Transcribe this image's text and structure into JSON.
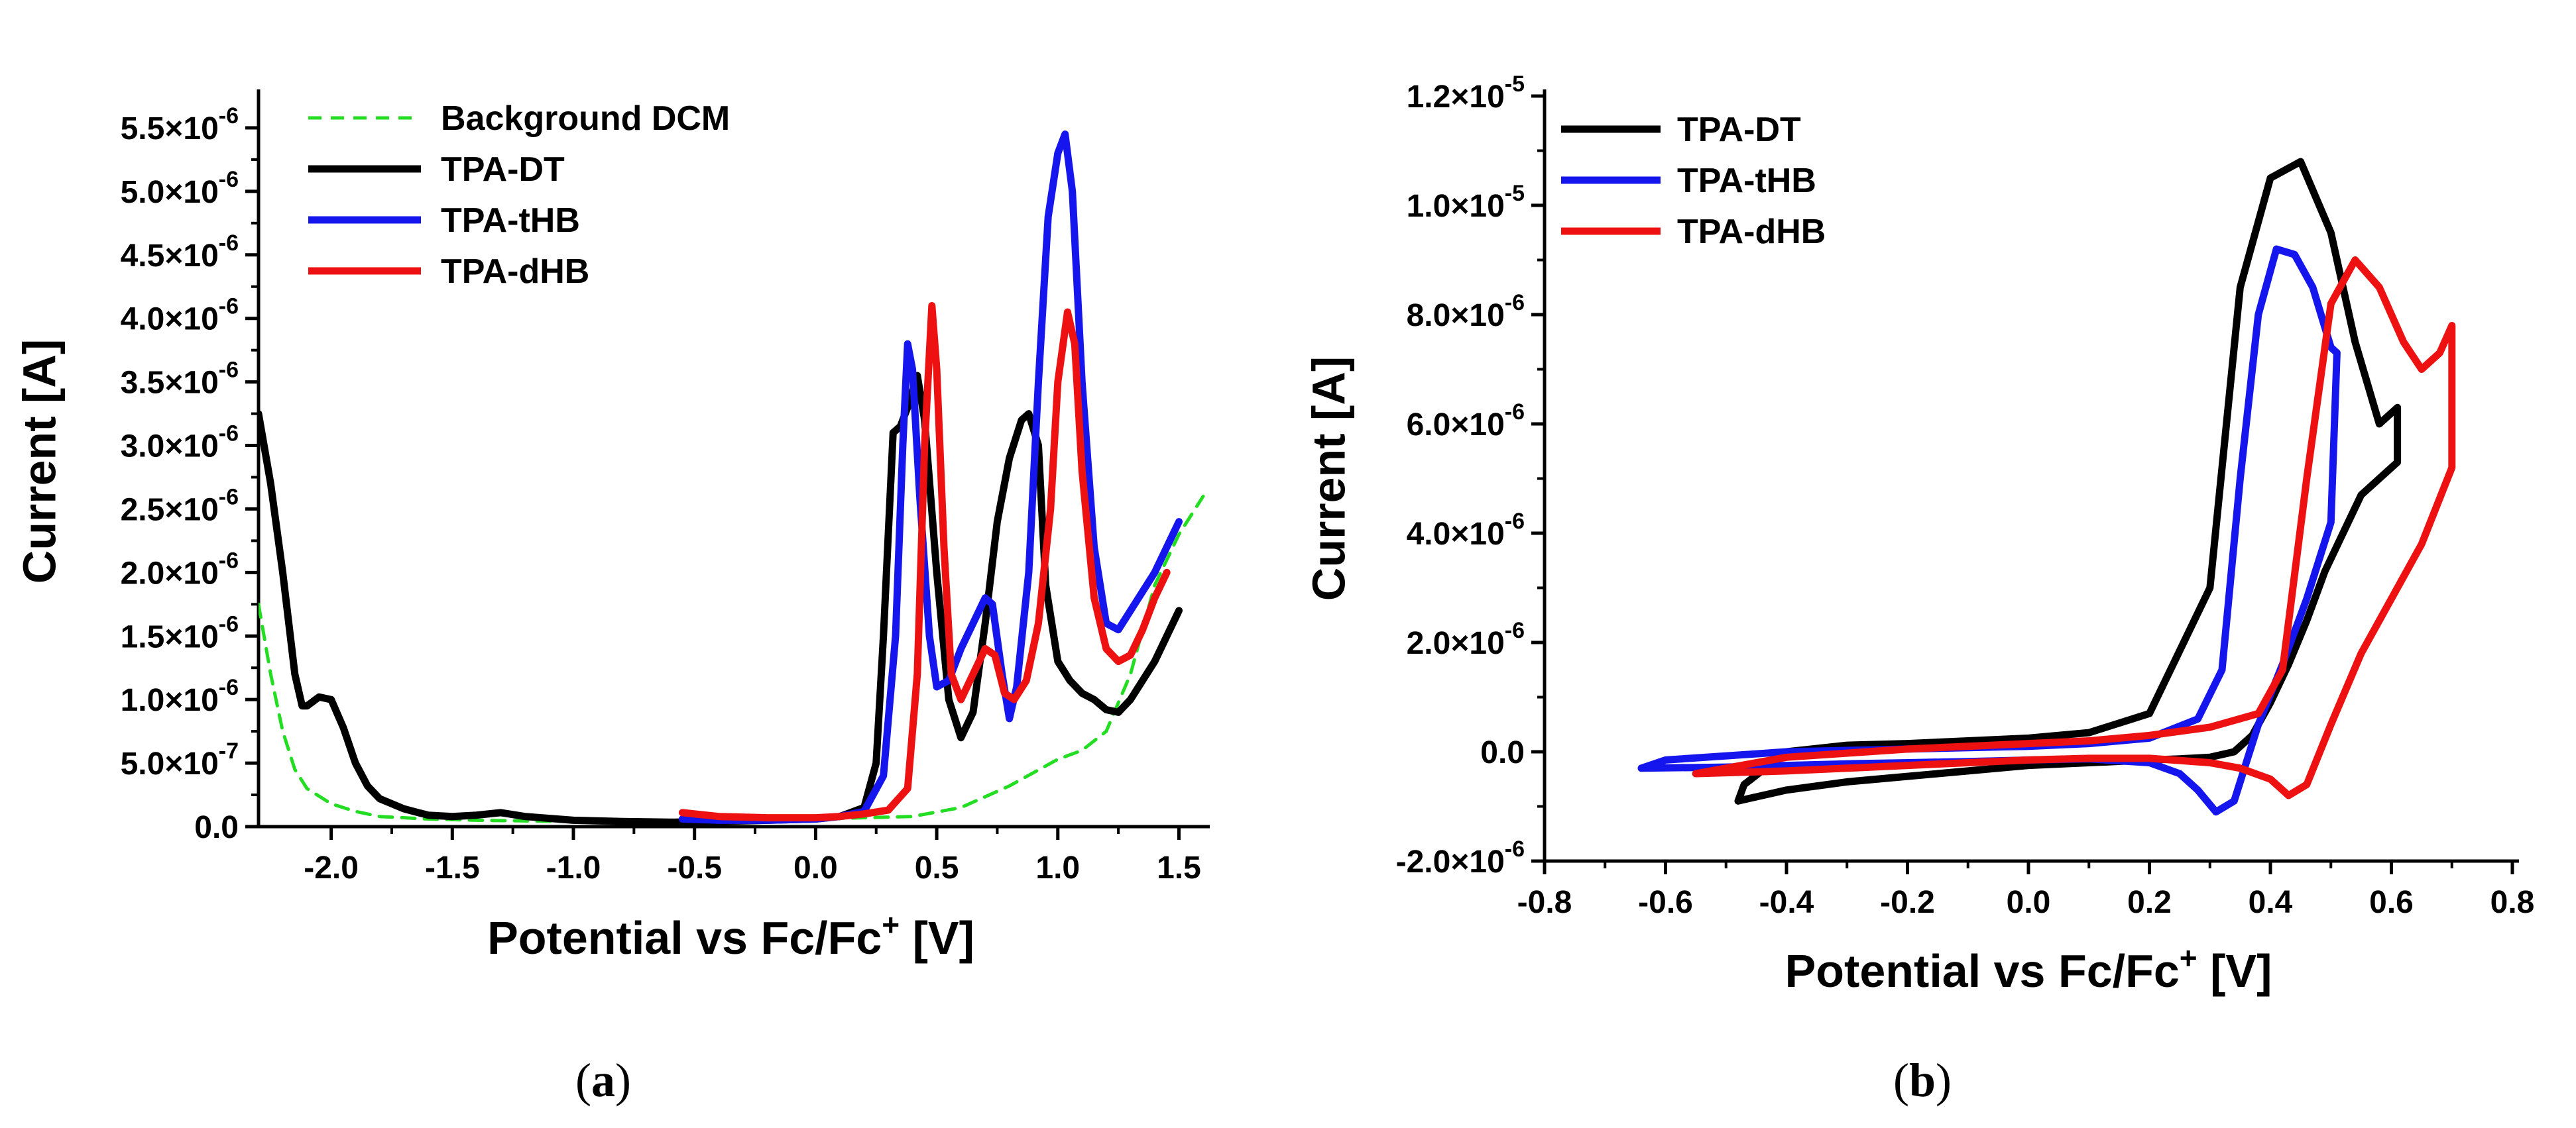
{
  "chart_data": [
    {
      "panel": "a",
      "panel_label": "a",
      "type": "line",
      "title": "",
      "xlabel": "Potential vs Fc/Fc",
      "xlabel_sup": "+",
      "xlabel_unit": " [V]",
      "ylabel": "Current [A]",
      "xlim": [
        -2.3,
        1.6
      ],
      "ylim": [
        0,
        5.75e-06
      ],
      "xticks": [
        -2.0,
        -1.5,
        -1.0,
        -0.5,
        0.0,
        0.5,
        1.0,
        1.5
      ],
      "xtick_labels": [
        "-2.0",
        "-1.5",
        "-1.0",
        "-0.5",
        "0.0",
        "0.5",
        "1.0",
        "1.5"
      ],
      "yticks": [
        0,
        5e-07,
        1e-06,
        1.5e-06,
        2e-06,
        2.5e-06,
        3e-06,
        3.5e-06,
        4e-06,
        4.5e-06,
        5e-06,
        5.5e-06
      ],
      "ytick_labels": [
        {
          "mant": "0.0",
          "exp": ""
        },
        {
          "mant": "5.0×10",
          "exp": "-7"
        },
        {
          "mant": "1.0×10",
          "exp": "-6"
        },
        {
          "mant": "1.5×10",
          "exp": "-6"
        },
        {
          "mant": "2.0×10",
          "exp": "-6"
        },
        {
          "mant": "2.5×10",
          "exp": "-6"
        },
        {
          "mant": "3.0×10",
          "exp": "-6"
        },
        {
          "mant": "3.5×10",
          "exp": "-6"
        },
        {
          "mant": "4.0×10",
          "exp": "-6"
        },
        {
          "mant": "4.5×10",
          "exp": "-6"
        },
        {
          "mant": "5.0×10",
          "exp": "-6"
        },
        {
          "mant": "5.5×10",
          "exp": "-6"
        }
      ],
      "legend_position": "top-left",
      "series": [
        {
          "name": "Background DCM",
          "color": "#22dd22",
          "dashed": true,
          "x": [
            -2.3,
            -2.25,
            -2.2,
            -2.15,
            -2.1,
            -2.0,
            -1.9,
            -1.8,
            -1.6,
            -1.4,
            -1.2,
            -1.0,
            -0.8,
            -0.6,
            -0.4,
            -0.2,
            0.0,
            0.2,
            0.4,
            0.6,
            0.8,
            1.0,
            1.1,
            1.2,
            1.3,
            1.4,
            1.5,
            1.6
          ],
          "y": [
            1.75e-06,
            1.2e-06,
            7.5e-07,
            4.5e-07,
            3e-07,
            1.8e-07,
            1.2e-07,
            8e-08,
            6e-08,
            5e-08,
            4.5e-08,
            4e-08,
            4e-08,
            4e-08,
            4.5e-08,
            5e-08,
            6e-08,
            7e-08,
            8e-08,
            1.5e-07,
            3.2e-07,
            5.3e-07,
            6e-07,
            7.5e-07,
            1.2e-06,
            1.9e-06,
            2.3e-06,
            2.6e-06
          ]
        },
        {
          "name": "TPA-DT",
          "color": "#000000",
          "dashed": false,
          "x": [
            -2.3,
            -2.25,
            -2.2,
            -2.15,
            -2.12,
            -2.1,
            -2.05,
            -2.0,
            -1.95,
            -1.9,
            -1.85,
            -1.8,
            -1.7,
            -1.6,
            -1.5,
            -1.4,
            -1.3,
            -1.2,
            -1.0,
            -0.8,
            -0.6,
            -0.4,
            -0.2,
            0.0,
            0.1,
            0.2,
            0.25,
            0.28,
            0.32,
            0.35,
            0.38,
            0.42,
            0.45,
            0.5,
            0.55,
            0.6,
            0.65,
            0.7,
            0.75,
            0.8,
            0.85,
            0.88,
            0.92,
            0.95,
            1.0,
            1.05,
            1.1,
            1.15,
            1.2,
            1.25,
            1.3,
            1.4,
            1.5
          ],
          "y": [
            3.25e-06,
            2.7e-06,
            2e-06,
            1.2e-06,
            9.5e-07,
            9.5e-07,
            1.02e-06,
            1e-06,
            7.8e-07,
            5e-07,
            3.2e-07,
            2.2e-07,
            1.4e-07,
            9e-08,
            8e-08,
            9e-08,
            1.1e-07,
            8e-08,
            5e-08,
            4e-08,
            3.5e-08,
            4e-08,
            5e-08,
            6e-08,
            8e-08,
            1.5e-07,
            5e-07,
            1.5e-06,
            3.1e-06,
            3.15e-06,
            3.3e-06,
            3.55e-06,
            3.2e-06,
            2e-06,
            1e-06,
            7e-07,
            9e-07,
            1.6e-06,
            2.4e-06,
            2.9e-06,
            3.2e-06,
            3.25e-06,
            3e-06,
            1.9e-06,
            1.3e-06,
            1.15e-06,
            1.05e-06,
            1e-06,
            9.2e-07,
            9e-07,
            1e-06,
            1.3e-06,
            1.7e-06
          ]
        },
        {
          "name": "TPA-tHB",
          "color": "#1515ee",
          "dashed": false,
          "x": [
            -0.55,
            -0.4,
            -0.2,
            0.0,
            0.1,
            0.2,
            0.28,
            0.33,
            0.36,
            0.38,
            0.4,
            0.43,
            0.47,
            0.5,
            0.55,
            0.6,
            0.65,
            0.7,
            0.73,
            0.77,
            0.8,
            0.83,
            0.88,
            0.92,
            0.96,
            1.0,
            1.03,
            1.06,
            1.1,
            1.15,
            1.2,
            1.25,
            1.3,
            1.4,
            1.5
          ],
          "y": [
            6e-08,
            5e-08,
            5e-08,
            6e-08,
            8e-08,
            1.2e-07,
            4e-07,
            1.5e-06,
            3e-06,
            3.8e-06,
            3.6e-06,
            2.6e-06,
            1.5e-06,
            1.1e-06,
            1.15e-06,
            1.4e-06,
            1.6e-06,
            1.8e-06,
            1.75e-06,
            1.2e-06,
            8.5e-07,
            1.1e-06,
            2e-06,
            3.5e-06,
            4.8e-06,
            5.3e-06,
            5.45e-06,
            5e-06,
            3.5e-06,
            2.2e-06,
            1.6e-06,
            1.55e-06,
            1.7e-06,
            2e-06,
            2.4e-06
          ]
        },
        {
          "name": "TPA-dHB",
          "color": "#ee1111",
          "dashed": false,
          "x": [
            -0.55,
            -0.4,
            -0.2,
            0.0,
            0.1,
            0.2,
            0.3,
            0.38,
            0.42,
            0.45,
            0.48,
            0.5,
            0.53,
            0.56,
            0.6,
            0.65,
            0.7,
            0.74,
            0.78,
            0.82,
            0.87,
            0.92,
            0.97,
            1.0,
            1.04,
            1.07,
            1.1,
            1.15,
            1.2,
            1.25,
            1.3,
            1.35,
            1.4,
            1.45
          ],
          "y": [
            1.1e-07,
            8e-08,
            7e-08,
            7e-08,
            8e-08,
            1e-07,
            1.3e-07,
            3e-07,
            1.2e-06,
            3e-06,
            4.1e-06,
            3.6e-06,
            2.2e-06,
            1.2e-06,
            1e-06,
            1.2e-06,
            1.4e-06,
            1.35e-06,
            1.05e-06,
            1e-06,
            1.15e-06,
            1.6e-06,
            2.5e-06,
            3.5e-06,
            4.05e-06,
            3.8e-06,
            2.8e-06,
            1.8e-06,
            1.4e-06,
            1.3e-06,
            1.35e-06,
            1.55e-06,
            1.8e-06,
            2e-06
          ]
        }
      ]
    },
    {
      "panel": "b",
      "panel_label": "b",
      "type": "line",
      "title": "",
      "xlabel": "Potential vs Fc/Fc",
      "xlabel_sup": "+",
      "xlabel_unit": " [V]",
      "ylabel": "Current [A]",
      "xlim": [
        -0.8,
        0.8
      ],
      "ylim": [
        -2e-06,
        1.2e-05
      ],
      "xticks": [
        -0.8,
        -0.6,
        -0.4,
        -0.2,
        0.0,
        0.2,
        0.4,
        0.6,
        0.8
      ],
      "xtick_labels": [
        "-0.8",
        "-0.6",
        "-0.4",
        "-0.2",
        "0.0",
        "0.2",
        "0.4",
        "0.6",
        "0.8"
      ],
      "yticks": [
        -2e-06,
        0,
        2e-06,
        4e-06,
        6e-06,
        8e-06,
        1e-05,
        1.2e-05
      ],
      "ytick_labels": [
        {
          "mant": "-2.0×10",
          "exp": "-6"
        },
        {
          "mant": "0.0",
          "exp": ""
        },
        {
          "mant": "2.0×10",
          "exp": "-6"
        },
        {
          "mant": "4.0×10",
          "exp": "-6"
        },
        {
          "mant": "6.0×10",
          "exp": "-6"
        },
        {
          "mant": "8.0×10",
          "exp": "-6"
        },
        {
          "mant": "1.0×10",
          "exp": "-5"
        },
        {
          "mant": "1.2×10",
          "exp": "-5"
        }
      ],
      "legend_position": "top-left",
      "series": [
        {
          "name": "TPA-DT",
          "color": "#000000",
          "dashed": false,
          "x": [
            -0.48,
            -0.4,
            -0.3,
            -0.2,
            -0.1,
            0.0,
            0.1,
            0.2,
            0.25,
            0.3,
            0.34,
            0.37,
            0.4,
            0.43,
            0.46,
            0.49,
            0.52,
            0.55,
            0.58,
            0.61,
            0.61,
            0.58,
            0.54,
            0.5,
            0.45,
            0.4,
            0.35,
            0.3,
            0.2,
            0.1,
            0.0,
            -0.1,
            -0.2,
            -0.3,
            -0.4,
            -0.47,
            -0.48
          ],
          "y": [
            -9e-07,
            -7e-07,
            -5.5e-07,
            -4.5e-07,
            -3.5e-07,
            -2.5e-07,
            -2e-07,
            -1.5e-07,
            -1.3e-07,
            -1e-07,
            0,
            3e-07,
            9e-07,
            1.6e-06,
            2.4e-06,
            3.3e-06,
            4e-06,
            4.7e-06,
            5e-06,
            5.3e-06,
            6.3e-06,
            6e-06,
            7.5e-06,
            9.5e-06,
            1.08e-05,
            1.05e-05,
            8.5e-06,
            3e-06,
            7e-07,
            3.5e-07,
            2.5e-07,
            2e-07,
            1.5e-07,
            1.2e-07,
            0,
            -6e-07,
            -9e-07
          ]
        },
        {
          "name": "TPA-tHB",
          "color": "#1515ee",
          "dashed": false,
          "x": [
            -0.64,
            -0.5,
            -0.4,
            -0.3,
            -0.2,
            -0.1,
            0.0,
            0.1,
            0.2,
            0.25,
            0.28,
            0.31,
            0.34,
            0.36,
            0.38,
            0.42,
            0.46,
            0.5,
            0.51,
            0.5,
            0.47,
            0.44,
            0.41,
            0.38,
            0.35,
            0.32,
            0.28,
            0.2,
            0.1,
            0.0,
            -0.2,
            -0.4,
            -0.6,
            -0.64
          ],
          "y": [
            -3e-07,
            -2.8e-07,
            -2.5e-07,
            -2.2e-07,
            -2e-07,
            -1.8e-07,
            -1.5e-07,
            -1.3e-07,
            -2e-07,
            -4e-07,
            -7e-07,
            -1.1e-06,
            -9e-07,
            -2e-07,
            5e-07,
            1.6e-06,
            2.8e-06,
            4.2e-06,
            7.3e-06,
            7.4e-06,
            8.5e-06,
            9.1e-06,
            9.2e-06,
            8e-06,
            5e-06,
            1.5e-06,
            6e-07,
            2.5e-07,
            1.5e-07,
            1e-07,
            5e-08,
            0,
            -1.5e-07,
            -3e-07
          ]
        },
        {
          "name": "TPA-dHB",
          "color": "#ee1111",
          "dashed": false,
          "x": [
            -0.55,
            -0.4,
            -0.3,
            -0.2,
            -0.1,
            0.0,
            0.1,
            0.2,
            0.3,
            0.35,
            0.4,
            0.43,
            0.46,
            0.5,
            0.55,
            0.6,
            0.65,
            0.7,
            0.7,
            0.68,
            0.65,
            0.62,
            0.58,
            0.54,
            0.5,
            0.46,
            0.42,
            0.38,
            0.3,
            0.2,
            0.1,
            0.0,
            -0.2,
            -0.4,
            -0.55
          ],
          "y": [
            -4e-07,
            -3.5e-07,
            -3e-07,
            -2.5e-07,
            -2e-07,
            -1.5e-07,
            -1.2e-07,
            -1.2e-07,
            -2e-07,
            -3e-07,
            -5e-07,
            -8e-07,
            -6e-07,
            5e-07,
            1.8e-06,
            2.8e-06,
            3.8e-06,
            5.2e-06,
            7.8e-06,
            7.3e-06,
            7e-06,
            7.5e-06,
            8.5e-06,
            9e-06,
            8.2e-06,
            5e-06,
            1.5e-06,
            7e-07,
            4.5e-07,
            3e-07,
            2e-07,
            1.5e-07,
            5e-08,
            -1e-07,
            -4e-07
          ]
        }
      ]
    }
  ]
}
